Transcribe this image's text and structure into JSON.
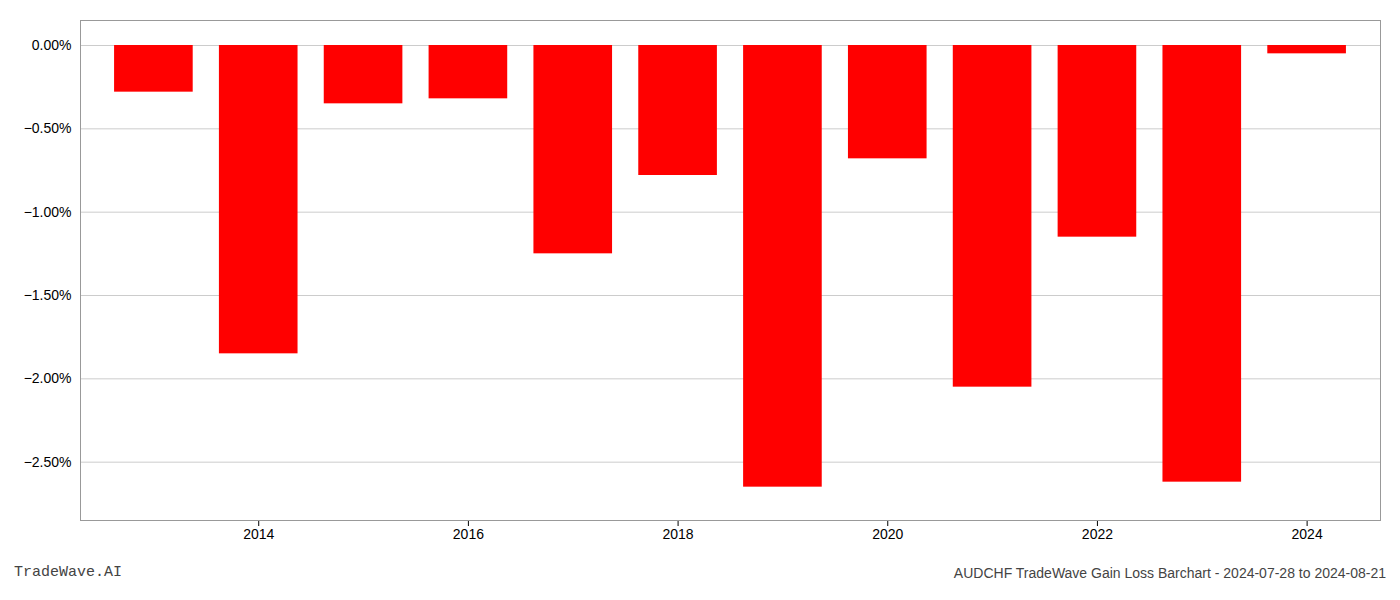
{
  "chart_data": {
    "type": "bar",
    "x": [
      2013,
      2014,
      2015,
      2016,
      2017,
      2018,
      2019,
      2020,
      2021,
      2022,
      2023,
      2024
    ],
    "values": [
      -0.28,
      -1.85,
      -0.35,
      -0.32,
      -1.25,
      -0.78,
      -2.65,
      -0.68,
      -2.05,
      -1.15,
      -2.62,
      -0.05
    ],
    "color": "#ff0000",
    "xlim": [
      2012.3,
      2024.7
    ],
    "xticks": [
      2014,
      2016,
      2018,
      2020,
      2022,
      2024
    ],
    "ylim": [
      -2.85,
      0.15
    ],
    "yticks": [
      {
        "value": 0.0,
        "label": "0.00%"
      },
      {
        "value": -0.5,
        "label": "−0.50%"
      },
      {
        "value": -1.0,
        "label": "−1.00%"
      },
      {
        "value": -1.5,
        "label": "−1.50%"
      },
      {
        "value": -2.0,
        "label": "−2.00%"
      },
      {
        "value": -2.5,
        "label": "−2.50%"
      }
    ],
    "grid": true,
    "annotations": [
      "TradeWave.AI",
      "AUDCHF TradeWave Gain Loss Barchart - 2024-07-28 to 2024-08-21"
    ]
  }
}
